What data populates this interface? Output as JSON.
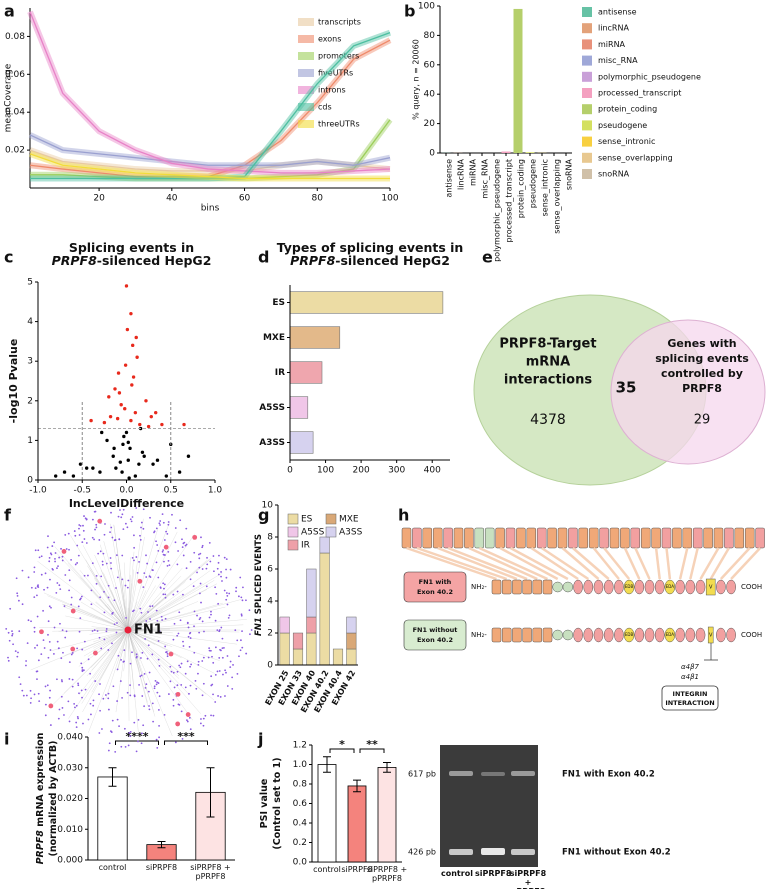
{
  "panels": [
    "a",
    "b",
    "c",
    "d",
    "e",
    "f",
    "g",
    "h",
    "i",
    "j"
  ],
  "chart_data": [
    {
      "type": "line",
      "ylabel": "meanCoverage",
      "xlabel": "bins",
      "x": [
        1,
        10,
        20,
        30,
        40,
        50,
        60,
        70,
        80,
        90,
        100
      ],
      "xlim": [
        1,
        100
      ],
      "xticks": [
        20,
        40,
        60,
        80,
        100
      ],
      "ylim": [
        0,
        0.095
      ],
      "yticks": [
        0.02,
        0.04,
        0.06,
        0.08
      ],
      "legend": "upper right",
      "series": [
        {
          "name": "transcripts",
          "color": "#e8c9a0",
          "values": [
            0.02,
            0.014,
            0.012,
            0.01,
            0.009,
            0.009,
            0.009,
            0.012,
            0.014,
            0.012,
            0.01
          ]
        },
        {
          "name": "exons",
          "color": "#ef8a6a",
          "values": [
            0.012,
            0.01,
            0.008,
            0.006,
            0.006,
            0.006,
            0.012,
            0.025,
            0.045,
            0.068,
            0.078
          ]
        },
        {
          "name": "promoters",
          "color": "#9ccf5a",
          "values": [
            0.007,
            0.007,
            0.006,
            0.005,
            0.005,
            0.005,
            0.005,
            0.006,
            0.007,
            0.01,
            0.036
          ]
        },
        {
          "name": "fiveUTRs",
          "color": "#9aa0d0",
          "values": [
            0.028,
            0.02,
            0.018,
            0.016,
            0.014,
            0.012,
            0.012,
            0.012,
            0.014,
            0.012,
            0.016
          ]
        },
        {
          "name": "introns",
          "color": "#e882c8",
          "values": [
            0.093,
            0.05,
            0.03,
            0.02,
            0.013,
            0.01,
            0.009,
            0.008,
            0.008,
            0.009,
            0.01
          ]
        },
        {
          "name": "cds",
          "color": "#4cbfa0",
          "values": [
            0.005,
            0.005,
            0.005,
            0.005,
            0.005,
            0.005,
            0.006,
            0.03,
            0.055,
            0.075,
            0.082
          ]
        },
        {
          "name": "threeUTRs",
          "color": "#f2dc3a",
          "values": [
            0.018,
            0.012,
            0.01,
            0.008,
            0.007,
            0.006,
            0.005,
            0.005,
            0.005,
            0.005,
            0.005
          ]
        }
      ]
    },
    {
      "type": "bar",
      "ylabel": "% query, n = 20060",
      "categories": [
        "antisense",
        "lincRNA",
        "miRNA",
        "misc_RNA",
        "polymorphic_pseudogene",
        "processed_transcript",
        "protein_coding",
        "pseudogene",
        "sense_intronic",
        "sense_overlapping",
        "snoRNA"
      ],
      "values": [
        0.1,
        0.1,
        0,
        0,
        0,
        1,
        98,
        0.5,
        0.1,
        0,
        0
      ],
      "colors": [
        "#66c2a5",
        "#e3a27a",
        "#e8917b",
        "#9fa8d8",
        "#c9a0d8",
        "#f4a0c0",
        "#b5cf6b",
        "#d4e060",
        "#f8d040",
        "#e8c890",
        "#d0c0a8"
      ],
      "ylim": [
        0,
        100
      ],
      "yticks": [
        0,
        20,
        40,
        60,
        80,
        100
      ],
      "legend": "right"
    },
    {
      "type": "scatter",
      "title": [
        "Splicing events in",
        "PRPF8",
        "-silenced HepG2"
      ],
      "xlabel": "IncLevelDifference",
      "ylabel": "-log10 Pvalue",
      "xlim": [
        -1,
        1
      ],
      "xticks": [
        {
          "value": -1,
          "label": "-1.0"
        },
        {
          "value": -0.5,
          "label": "-0.5"
        },
        {
          "value": 0,
          "label": "0.0"
        },
        {
          "value": 0.5,
          "label": "0.5"
        },
        {
          "value": 1,
          "label": "1.0"
        }
      ],
      "ylim": [
        0,
        5
      ],
      "yticks": [
        0,
        1,
        2,
        3,
        4,
        5
      ],
      "threshold": 1.3,
      "vlines": [
        -0.5,
        0.5
      ],
      "sig_color": "#e8291c",
      "ns_color": "#000000",
      "x": [
        -0.05,
        0.02,
        0.1,
        -0.12,
        0.3,
        -0.3,
        0.45,
        -0.45,
        0.6,
        -0.6,
        0.05,
        -0.02,
        0.15,
        -0.18,
        0.22,
        -0.25,
        0.08,
        -0.08,
        0.0,
        0.12,
        0.04,
        -0.04,
        0.18,
        -0.15,
        0.35,
        -0.38,
        0.5,
        -0.52,
        0.7,
        -0.7,
        0.01,
        -0.01,
        0.06,
        -0.06,
        0.1,
        -0.1,
        0.25,
        -0.2,
        0.4,
        -0.4,
        0.03,
        -0.03,
        0.14,
        -0.14,
        0.2,
        -0.22,
        0.05,
        0.07,
        -0.09,
        0.28,
        0.65,
        -0.8,
        0.02,
        0.0,
        -0.07,
        0.11,
        0.16,
        -0.13,
        0.33,
        -0.28
      ],
      "y": [
        0.2,
        0.5,
        0.1,
        0.3,
        0.4,
        0.2,
        0.1,
        0.3,
        0.2,
        0.1,
        1.5,
        1.8,
        1.4,
        1.6,
        2.0,
        1.45,
        2.6,
        2.2,
        4.9,
        3.1,
        0.8,
        0.9,
        0.7,
        0.6,
        0.5,
        0.3,
        0.9,
        0.4,
        0.6,
        0.2,
        3.8,
        2.9,
        2.4,
        1.9,
        1.7,
        1.55,
        1.35,
        2.1,
        1.4,
        1.5,
        0.05,
        1.1,
        0.4,
        0.8,
        0.6,
        1.0,
        4.2,
        3.4,
        2.7,
        1.6,
        1.4,
        0.1,
        0.95,
        1.2,
        0.45,
        3.6,
        1.3,
        2.3,
        1.7,
        1.2
      ]
    },
    {
      "type": "hbar",
      "title": [
        "Types of splicing events in",
        "PRPF8",
        "-silenced HepG2"
      ],
      "categories": [
        "ES",
        "MXE",
        "IR",
        "A5SS",
        "A3SS"
      ],
      "values": [
        430,
        140,
        90,
        50,
        65
      ],
      "colors": [
        "#ecdca4",
        "#e3b98a",
        "#efa6ae",
        "#f0c6e8",
        "#d6d2ef"
      ],
      "xlim": [
        0,
        450
      ],
      "xticks": [
        0,
        100,
        200,
        300,
        400
      ]
    },
    {
      "type": "stacked",
      "ylabel": [
        "FN1",
        " SPLICED EVENTS"
      ],
      "categories": [
        "EXON 25",
        "EXON 33",
        "EXON 40",
        "EXON 40.2",
        "EXON 40.4",
        "EXON 42"
      ],
      "ylim": [
        0,
        10
      ],
      "yticks": [
        0,
        2,
        4,
        6,
        8,
        10
      ],
      "legend": "upper left",
      "series": [
        {
          "name": "ES",
          "color": "#ecdca4",
          "values": [
            2,
            1,
            2,
            7,
            1,
            1
          ]
        },
        {
          "name": "MXE",
          "color": "#d9a877",
          "values": [
            0,
            0,
            0,
            0,
            0,
            1
          ]
        },
        {
          "name": "A5SS",
          "color": "#f0c6e8",
          "values": [
            1,
            0,
            0,
            0,
            0,
            0
          ]
        },
        {
          "name": "A3SS",
          "color": "#d6d2ef",
          "values": [
            0,
            0,
            3,
            1,
            0,
            1
          ]
        },
        {
          "name": "IR",
          "color": "#eea0a8",
          "values": [
            0,
            1,
            1,
            0,
            0,
            0
          ]
        }
      ]
    },
    {
      "type": "bar",
      "ylabel": [
        "PRPF8",
        " mRNA expression",
        "(normalized by ACTB)"
      ],
      "categories": [
        "control",
        "siPRPF8",
        "siPRPF8 + pPRPF8"
      ],
      "values": [
        0.027,
        0.005,
        0.022
      ],
      "errors": [
        0.003,
        0.001,
        0.008
      ],
      "colors": [
        "#ffffff",
        "#f4837d",
        "#fde3e3"
      ],
      "ylim": [
        0,
        0.04
      ],
      "yticks": [
        {
          "value": 0,
          "label": "0.000"
        },
        {
          "value": 0.01,
          "label": "0.010"
        },
        {
          "value": 0.02,
          "label": "0.020"
        },
        {
          "value": 0.03,
          "label": "0.030"
        },
        {
          "value": 0.04,
          "label": "0.040"
        }
      ],
      "annotations": [
        "****",
        "***"
      ]
    },
    {
      "type": "bar",
      "ylabel": [
        "PSI value",
        "(Control set to 1)"
      ],
      "categories": [
        "control",
        "siPRPF8",
        "siPRPF8 + pPRPF8"
      ],
      "values": [
        1.0,
        0.78,
        0.97
      ],
      "errors": [
        0.08,
        0.06,
        0.05
      ],
      "colors": [
        "#ffffff",
        "#f4837d",
        "#fde3e3"
      ],
      "ylim": [
        0,
        1.2
      ],
      "yticks": [
        {
          "value": 0,
          "label": "0.0"
        },
        {
          "value": 0.2,
          "label": "0.2"
        },
        {
          "value": 0.4,
          "label": "0.4"
        },
        {
          "value": 0.6,
          "label": "0.6"
        },
        {
          "value": 0.8,
          "label": "0.8"
        },
        {
          "value": 1,
          "label": "1.0"
        },
        {
          "value": 1.2,
          "label": "1.2"
        }
      ],
      "annotations": [
        "*",
        "**"
      ]
    }
  ],
  "venn": {
    "left_label": [
      "PRPF8-Target",
      "mRNA",
      "interactions"
    ],
    "left_count": 4378,
    "overlap": 35,
    "right_label": [
      "Genes with",
      "splicing events",
      "controlled by",
      "PRPF8"
    ],
    "right_count": 29
  },
  "network": {
    "hub": "FN1"
  },
  "protein": {
    "with_label": [
      "FN1 with",
      "Exon 40.2"
    ],
    "without_label": [
      "FN1 without",
      "Exon 40.2"
    ],
    "n_term": "NH₂-",
    "c_term": "COOH",
    "domains": [
      "EDB",
      "EDA",
      "V"
    ],
    "integrins": [
      "α4β7",
      "α4β1"
    ],
    "interaction": [
      "INTEGRIN",
      "INTERACTION"
    ]
  },
  "gel": {
    "markers": [
      "617 pb",
      "426 pb"
    ],
    "bands": [
      "FN1 with Exon 40.2",
      "FN1 without Exon 40.2"
    ],
    "lanes": [
      "control",
      "siPRPF8",
      "siPRPF8 + pPRPF8"
    ]
  }
}
